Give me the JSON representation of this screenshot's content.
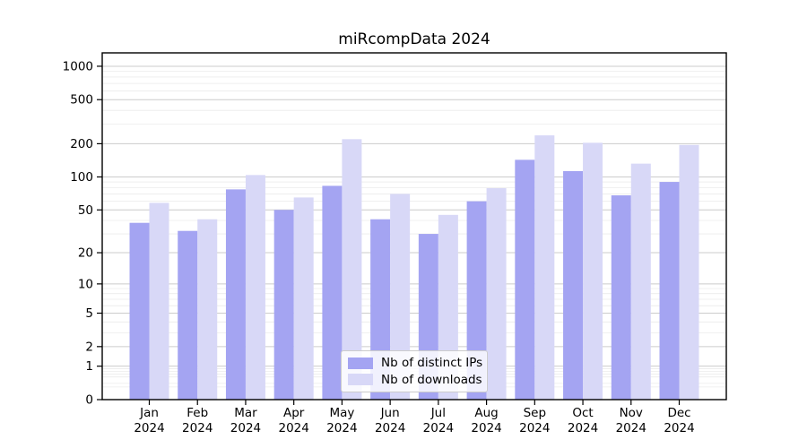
{
  "chart_data": {
    "type": "bar",
    "title": "miRcompData 2024",
    "categories": [
      "Jan",
      "Feb",
      "Mar",
      "Apr",
      "May",
      "Jun",
      "Jul",
      "Aug",
      "Sep",
      "Oct",
      "Nov",
      "Dec"
    ],
    "x_tick_year": "2024",
    "series": [
      {
        "name": "Nb of distinct IPs",
        "color": "#a4a4f2",
        "values": [
          38,
          32,
          77,
          50,
          83,
          41,
          30,
          60,
          143,
          113,
          68,
          90
        ]
      },
      {
        "name": "Nb of downloads",
        "color": "#d8d8f7",
        "values": [
          58,
          41,
          104,
          65,
          220,
          70,
          45,
          79,
          238,
          204,
          132,
          195
        ]
      }
    ],
    "yticks": [
      0,
      1,
      2,
      5,
      10,
      20,
      50,
      100,
      200,
      500,
      1000
    ],
    "xlabel": "",
    "ylabel": "",
    "scale": "log1p",
    "ylim": [
      0,
      1340
    ],
    "grid": true,
    "legend_position": "lower center",
    "colors": {
      "major_grid": "#cccccc",
      "minor_grid": "#ebebeb",
      "spine": "#000000",
      "tick_label": "#000000",
      "background": "#ffffff"
    }
  }
}
